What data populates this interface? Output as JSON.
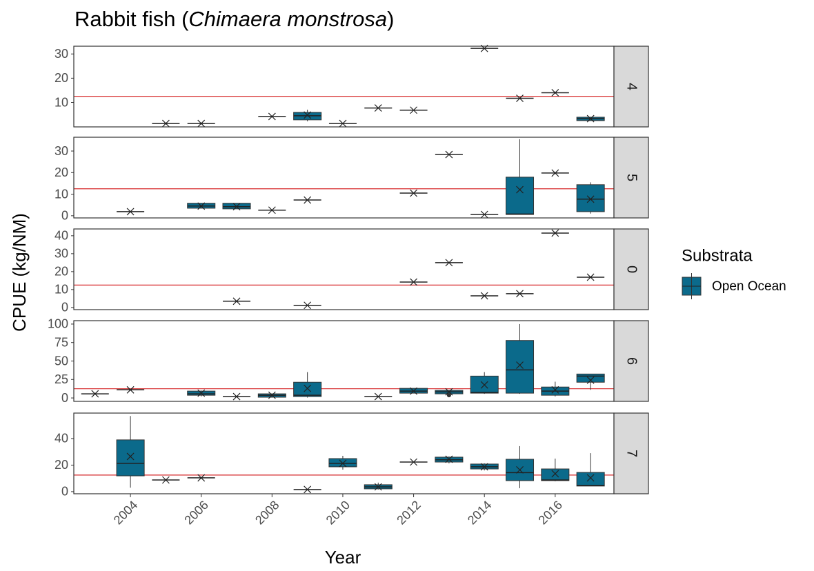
{
  "chart_data": {
    "type": "box",
    "title": [
      "Rabbit fish (",
      "Chimaera monstrosa",
      ")"
    ],
    "x_label": "Year",
    "y_label": "CPUE (kg/NM)",
    "legend_title": "Substrata",
    "series": [
      {
        "name": "Open Ocean",
        "color": "#0b6a8b"
      }
    ],
    "reference_line": {
      "value": 12.5,
      "color": "#d62728"
    },
    "xlim": [
      2002.4,
      2017.66
    ],
    "xticks": [
      2004,
      2006,
      2008,
      2010,
      2012,
      2014,
      2016
    ],
    "panels": [
      {
        "label": "4",
        "ylim": [
          -0.1,
          33.2
        ],
        "yticks": [
          10,
          20,
          30
        ],
        "boxes": [
          {
            "x": 2005,
            "value": 1.3
          },
          {
            "x": 2006,
            "value": 1.3
          },
          {
            "x": 2008,
            "value": 4.2
          },
          {
            "x": 2009,
            "min": 2.2,
            "q1": 2.8,
            "median": 4.5,
            "q3": 5.9,
            "max": 7.0,
            "mean": 4.8
          },
          {
            "x": 2010,
            "value": 1.3
          },
          {
            "x": 2011,
            "value": 7.7
          },
          {
            "x": 2012,
            "value": 6.8
          },
          {
            "x": 2014,
            "value": 32.3
          },
          {
            "x": 2015,
            "value": 11.7
          },
          {
            "x": 2016,
            "value": 14
          },
          {
            "x": 2017,
            "min": 2.5,
            "q1": 2.5,
            "median": 3.3,
            "q3": 3.9,
            "max": 3.9,
            "mean": 3.3
          }
        ]
      },
      {
        "label": "5",
        "ylim": [
          -1.0,
          36.4
        ],
        "yticks": [
          0,
          10,
          20,
          30
        ],
        "boxes": [
          {
            "x": 2004,
            "value": 1.9
          },
          {
            "x": 2006,
            "min": 3.5,
            "q1": 3.5,
            "median": 4.5,
            "q3": 5.8,
            "max": 5.8,
            "mean": 4.5
          },
          {
            "x": 2007,
            "min": 3.2,
            "q1": 3.2,
            "median": 4.2,
            "q3": 5.8,
            "max": 5.8,
            "mean": 4.2
          },
          {
            "x": 2008,
            "value": 2.6
          },
          {
            "x": 2009,
            "value": 7.3
          },
          {
            "x": 2012,
            "value": 10.5
          },
          {
            "x": 2013,
            "value": 28.4
          },
          {
            "x": 2014,
            "value": 0.6
          },
          {
            "x": 2015,
            "min": 0.6,
            "q1": 0.6,
            "median": 0.8,
            "q3": 17.9,
            "max": 35.5,
            "mean": 12.1
          },
          {
            "x": 2016,
            "value": 19.8
          },
          {
            "x": 2017,
            "min": 1.0,
            "q1": 1.9,
            "median": 7.7,
            "q3": 14.4,
            "max": 15.5,
            "mean": 7.7
          }
        ]
      },
      {
        "label": "0",
        "ylim": [
          -1.2,
          43.8
        ],
        "yticks": [
          0,
          10,
          20,
          30,
          40
        ],
        "boxes": [
          {
            "x": 2007,
            "value": 3.5
          },
          {
            "x": 2009,
            "value": 1.2
          },
          {
            "x": 2012,
            "value": 14.2
          },
          {
            "x": 2013,
            "value": 25
          },
          {
            "x": 2014,
            "value": 6.5
          },
          {
            "x": 2015,
            "value": 7.7
          },
          {
            "x": 2016,
            "value": 41.5
          },
          {
            "x": 2017,
            "value": 16.9
          }
        ]
      },
      {
        "label": "6",
        "ylim": [
          -4.6,
          104.6
        ],
        "yticks": [
          0,
          25,
          50,
          75,
          100
        ],
        "boxes": [
          {
            "x": 2003,
            "value": 5.6
          },
          {
            "x": 2004,
            "value": 11
          },
          {
            "x": 2006,
            "min": 2,
            "q1": 3.7,
            "median": 5.6,
            "q3": 9.3,
            "max": 10,
            "mean": 6.5
          },
          {
            "x": 2007,
            "value": 1.9
          },
          {
            "x": 2008,
            "min": 1,
            "q1": 1,
            "median": 3.7,
            "q3": 5.6,
            "max": 5.6,
            "mean": 3.7
          },
          {
            "x": 2009,
            "min": 0.5,
            "q1": 1.9,
            "median": 3.7,
            "q3": 21.3,
            "max": 35,
            "mean": 13
          },
          {
            "x": 2011,
            "value": 1.9
          },
          {
            "x": 2012,
            "min": 6.5,
            "q1": 6.5,
            "median": 9.3,
            "q3": 13,
            "max": 13,
            "mean": 9.3
          },
          {
            "x": 2013,
            "min": 5.6,
            "q1": 5.6,
            "median": 8.3,
            "q3": 10.2,
            "max": 10.2,
            "mean": 8.3,
            "outliers": [
              3.7
            ]
          },
          {
            "x": 2014,
            "min": 5.6,
            "q1": 6.5,
            "median": 7.4,
            "q3": 29.6,
            "max": 35,
            "mean": 17.6
          },
          {
            "x": 2015,
            "min": 5.6,
            "q1": 6.5,
            "median": 38,
            "q3": 77.8,
            "max": 100,
            "mean": 44.4
          },
          {
            "x": 2016,
            "min": 2,
            "q1": 3.7,
            "median": 9.3,
            "q3": 14.8,
            "max": 22,
            "mean": 11
          },
          {
            "x": 2017,
            "min": 11,
            "q1": 21.3,
            "median": 29.6,
            "q3": 32.4,
            "max": 32.4,
            "mean": 24
          }
        ]
      },
      {
        "label": "7",
        "ylim": [
          -1.6,
          59.2
        ],
        "yticks": [
          0,
          20,
          40
        ],
        "boxes": [
          {
            "x": 2004,
            "min": 3,
            "q1": 11.9,
            "median": 21.3,
            "q3": 39,
            "max": 57,
            "mean": 26.5
          },
          {
            "x": 2005,
            "value": 8.8
          },
          {
            "x": 2006,
            "value": 10.4
          },
          {
            "x": 2009,
            "value": 1.6
          },
          {
            "x": 2010,
            "min": 16.6,
            "q1": 18.7,
            "median": 21.3,
            "q3": 24.9,
            "max": 27,
            "mean": 21.3
          },
          {
            "x": 2011,
            "min": 1.6,
            "q1": 2.1,
            "median": 3.6,
            "q3": 5.2,
            "max": 6.8,
            "mean": 3.6
          },
          {
            "x": 2012,
            "value": 22.3
          },
          {
            "x": 2013,
            "min": 21.3,
            "q1": 22.3,
            "median": 24,
            "q3": 26,
            "max": 26.5,
            "mean": 24.4
          },
          {
            "x": 2014,
            "min": 16,
            "q1": 17.1,
            "median": 18.7,
            "q3": 20.8,
            "max": 21.3,
            "mean": 18.7
          },
          {
            "x": 2015,
            "min": 2.6,
            "q1": 8.3,
            "median": 14.3,
            "q3": 24.4,
            "max": 34.3,
            "mean": 16.4
          },
          {
            "x": 2016,
            "min": 7.8,
            "q1": 8.3,
            "median": 8.8,
            "q3": 17.1,
            "max": 24.9,
            "mean": 13.5
          },
          {
            "x": 2017,
            "min": 4.2,
            "q1": 4.2,
            "median": 4.7,
            "q3": 14.5,
            "max": 29,
            "mean": 10.4
          }
        ]
      }
    ]
  }
}
